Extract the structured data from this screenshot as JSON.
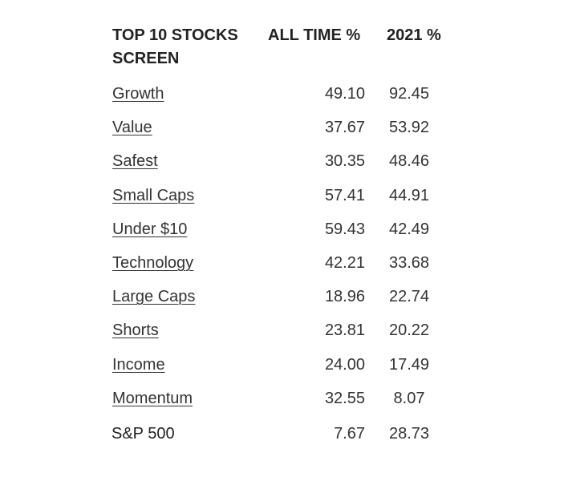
{
  "table": {
    "headers": {
      "screen": "TOP 10 STOCKS SCREEN",
      "all_time": "ALL TIME %",
      "year": "2021 %"
    },
    "rows": [
      {
        "name": "Growth",
        "all_time": "49.10",
        "year": "92.45"
      },
      {
        "name": "Value",
        "all_time": "37.67",
        "year": "53.92"
      },
      {
        "name": "Safest",
        "all_time": "30.35",
        "year": "48.46"
      },
      {
        "name": "Small Caps",
        "all_time": "57.41",
        "year": "44.91"
      },
      {
        "name": "Under $10",
        "all_time": "59.43",
        "year": "42.49"
      },
      {
        "name": "Technology",
        "all_time": "42.21",
        "year": "33.68"
      },
      {
        "name": "Large Caps",
        "all_time": "18.96",
        "year": "22.74"
      },
      {
        "name": "Shorts",
        "all_time": "23.81",
        "year": "20.22"
      },
      {
        "name": "Income",
        "all_time": "24.00",
        "year": "17.49"
      },
      {
        "name": "Momentum",
        "all_time": "32.55",
        "year": "8.07"
      }
    ],
    "benchmark": {
      "name": "S&P 500",
      "all_time": "7.67",
      "year": "28.73"
    }
  }
}
